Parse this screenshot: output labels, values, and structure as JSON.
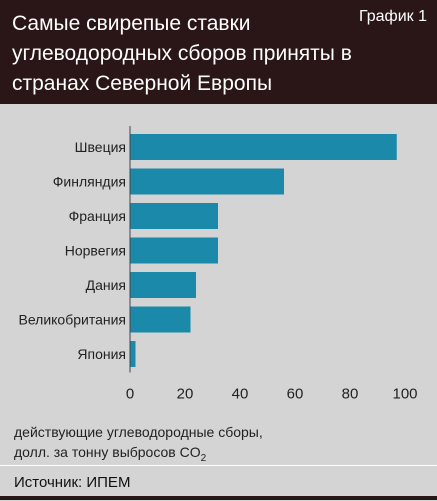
{
  "header": {
    "title": "Самые свирепые ставки углеводородных сборов приняты в странах Северной Европы",
    "tag": "График 1"
  },
  "units": {
    "line1": "действующие углеводородные сборы,",
    "line2": "долл. за тонну выбросов CO",
    "sub": "2"
  },
  "source": "Источник: ИПЕМ",
  "colors": {
    "bar": "#1b8aaa",
    "header_bg": "#2a1616",
    "panel_bg": "#d4d4d4"
  },
  "chart_data": {
    "type": "bar",
    "orientation": "horizontal",
    "categories": [
      "Швеция",
      "Финляндия",
      "Франция",
      "Норвегия",
      "Дания",
      "Великобритания",
      "Япония"
    ],
    "values": [
      97,
      56,
      32,
      32,
      24,
      22,
      2
    ],
    "xlim": [
      0,
      100
    ],
    "xticks": [
      0,
      20,
      40,
      60,
      80,
      100
    ],
    "grid": false
  }
}
